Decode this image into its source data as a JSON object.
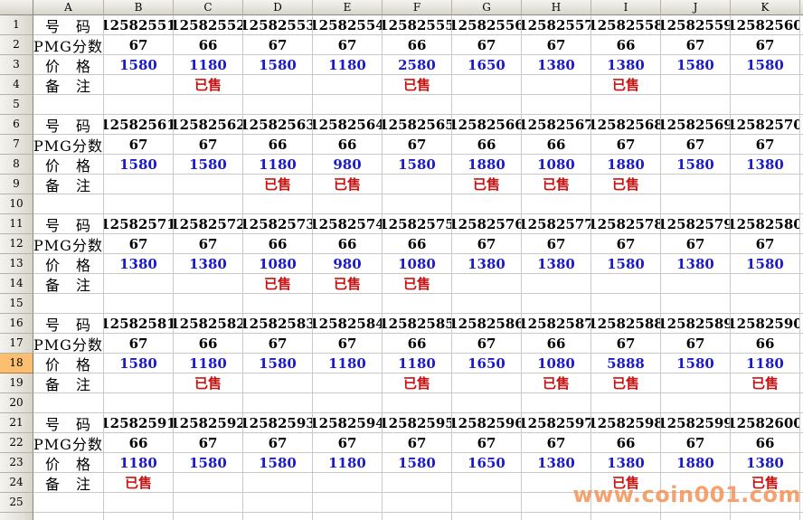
{
  "sheet": {
    "corner_label": "",
    "column_headers": [
      "A",
      "B",
      "C",
      "D",
      "E",
      "F",
      "G",
      "H",
      "I",
      "J",
      "K"
    ],
    "row_count": 26,
    "visible_numbered_rows": 25,
    "selected_row": 18,
    "row_labels": {
      "number": "号　码",
      "pmg": "PMG分数",
      "price": "价　格",
      "note": "备　注"
    },
    "blocks": [
      {
        "numbers": [
          "12582551",
          "12582552",
          "12582553",
          "12582554",
          "12582555",
          "12582556",
          "12582557",
          "12582558",
          "12582559",
          "12582560"
        ],
        "pmg": [
          "67",
          "66",
          "67",
          "67",
          "66",
          "67",
          "67",
          "66",
          "67",
          "67"
        ],
        "prices": [
          "1580",
          "1180",
          "1580",
          "1180",
          "2580",
          "1650",
          "1380",
          "1380",
          "1580",
          "1580"
        ],
        "notes": [
          "",
          "已售",
          "",
          "",
          "已售",
          "",
          "",
          "已售",
          "",
          ""
        ]
      },
      {
        "numbers": [
          "12582561",
          "12582562",
          "12582563",
          "12582564",
          "12582565",
          "12582566",
          "12582567",
          "12582568",
          "12582569",
          "12582570"
        ],
        "pmg": [
          "67",
          "67",
          "66",
          "66",
          "67",
          "66",
          "66",
          "67",
          "67",
          "67"
        ],
        "prices": [
          "1580",
          "1580",
          "1180",
          "980",
          "1580",
          "1880",
          "1080",
          "1880",
          "1580",
          "1380"
        ],
        "notes": [
          "",
          "",
          "已售",
          "已售",
          "",
          "已售",
          "已售",
          "已售",
          "",
          ""
        ]
      },
      {
        "numbers": [
          "12582571",
          "12582572",
          "12582573",
          "12582574",
          "12582575",
          "12582576",
          "12582577",
          "12582578",
          "12582579",
          "12582580"
        ],
        "pmg": [
          "67",
          "67",
          "66",
          "66",
          "66",
          "67",
          "67",
          "67",
          "67",
          "67"
        ],
        "prices": [
          "1380",
          "1380",
          "1080",
          "980",
          "1080",
          "1380",
          "1380",
          "1580",
          "1380",
          "1580"
        ],
        "notes": [
          "",
          "",
          "已售",
          "已售",
          "已售",
          "",
          "",
          "",
          "",
          ""
        ]
      },
      {
        "numbers": [
          "12582581",
          "12582582",
          "12582583",
          "12582584",
          "12582585",
          "12582586",
          "12582587",
          "12582588",
          "12582589",
          "12582590"
        ],
        "pmg": [
          "67",
          "66",
          "67",
          "67",
          "66",
          "67",
          "66",
          "67",
          "67",
          "66"
        ],
        "prices": [
          "1580",
          "1180",
          "1580",
          "1180",
          "1180",
          "1650",
          "1080",
          "5888",
          "1580",
          "1180"
        ],
        "notes": [
          "",
          "已售",
          "",
          "",
          "已售",
          "",
          "已售",
          "已售",
          "",
          "已售"
        ]
      },
      {
        "numbers": [
          "12582591",
          "12582592",
          "12582593",
          "12582594",
          "12582595",
          "12582596",
          "12582597",
          "12582598",
          "12582599",
          "12582600"
        ],
        "pmg": [
          "66",
          "67",
          "67",
          "67",
          "67",
          "67",
          "67",
          "66",
          "67",
          "66"
        ],
        "prices": [
          "1180",
          "1580",
          "1580",
          "1180",
          "1580",
          "1650",
          "1380",
          "1380",
          "1880",
          "1380"
        ],
        "notes": [
          "已售",
          "",
          "",
          "",
          "",
          "",
          "",
          "已售",
          "",
          "已售"
        ]
      }
    ]
  },
  "watermark": {
    "text": "www.coin001.com"
  },
  "colors": {
    "price_text": "#1A1ACB",
    "sold_text": "#CC1111",
    "watermark_text": "rgba(243,146,85,0.85)",
    "gridline": "#C9C9C9",
    "selected_header_bg": "#FCBE70"
  }
}
